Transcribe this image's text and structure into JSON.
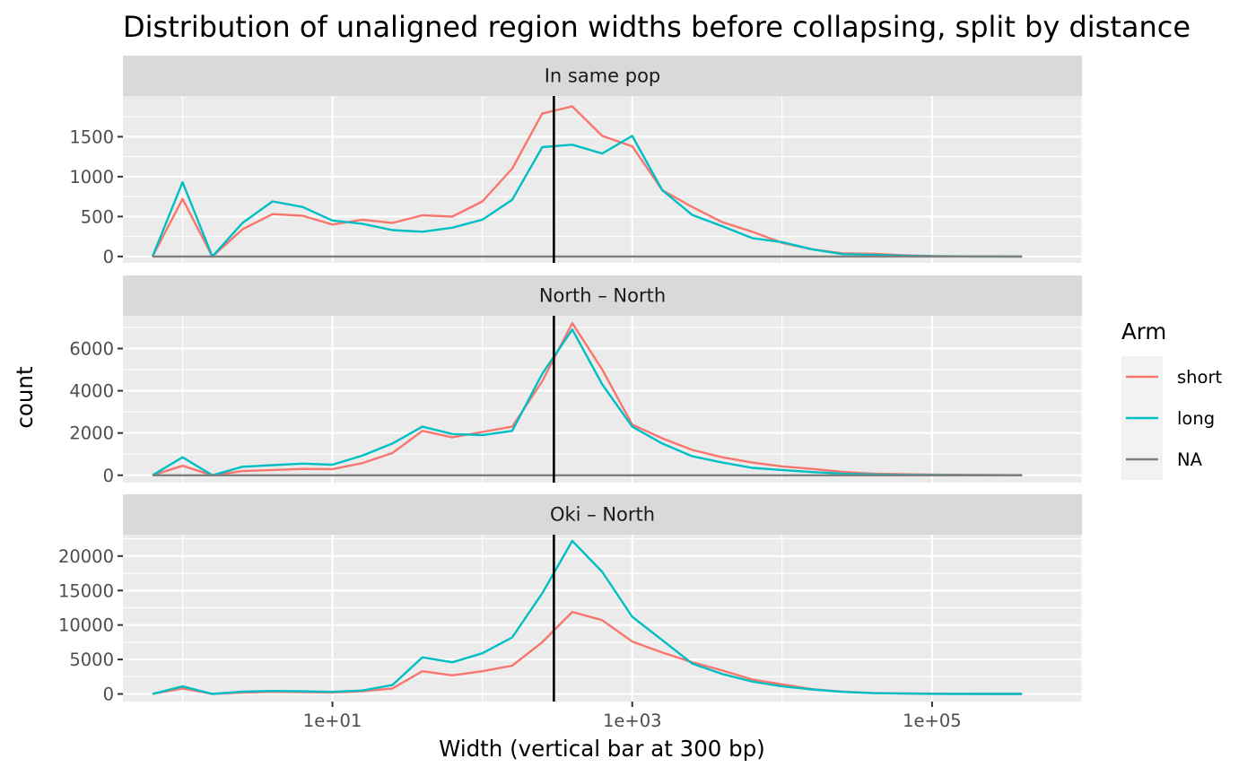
{
  "chart_data": {
    "type": "line",
    "title": "Distribution of unaligned region widths before collapsing, split by distance",
    "xlabel": "Width (vertical bar at 300 bp)",
    "ylabel": "count",
    "x_scale": "log10",
    "xlim": [
      0.4,
      1000000
    ],
    "x_ticks": [
      10,
      1000,
      100000
    ],
    "x_tick_labels": [
      "1e+01",
      "1e+03",
      "1e+05"
    ],
    "vline": 300,
    "grid": true,
    "legend": {
      "title": "Arm",
      "position": "right",
      "entries": [
        {
          "name": "short",
          "color": "#F8766D"
        },
        {
          "name": "long",
          "color": "#00BFC4"
        },
        {
          "name": "NA",
          "color": "#7F7F7F"
        }
      ]
    },
    "x": [
      0.63,
      1,
      1.58,
      2.51,
      3.98,
      6.31,
      10,
      15.8,
      25.1,
      39.8,
      63.1,
      100,
      158,
      251,
      398,
      631,
      1000,
      1585,
      2512,
      3981,
      6310,
      10000,
      15850,
      25120,
      39810,
      63100,
      100000,
      158500,
      251200,
      398100
    ],
    "panels": [
      {
        "label": "In same pop",
        "ylim": [
          -80,
          2010
        ],
        "y_ticks": [
          0,
          500,
          1000,
          1500
        ],
        "series": [
          {
            "name": "short",
            "values": [
              0,
              720,
              0,
              340,
              530,
              510,
              400,
              460,
              420,
              515,
              500,
              690,
              1100,
              1790,
              1880,
              1510,
              1380,
              830,
              620,
              430,
              310,
              170,
              90,
              40,
              35,
              15,
              5,
              2,
              1,
              0
            ]
          },
          {
            "name": "long",
            "values": [
              0,
              930,
              0,
              420,
              690,
              620,
              450,
              410,
              330,
              310,
              360,
              460,
              710,
              1370,
              1400,
              1290,
              1510,
              830,
              520,
              380,
              230,
              180,
              90,
              30,
              20,
              10,
              3,
              1,
              0,
              0
            ]
          },
          {
            "name": "NA",
            "values": [
              0,
              0,
              0,
              0,
              0,
              0,
              0,
              0,
              0,
              0,
              0,
              0,
              0,
              0,
              0,
              0,
              0,
              0,
              0,
              0,
              0,
              0,
              0,
              0,
              0,
              0,
              0,
              0,
              0,
              0
            ]
          }
        ]
      },
      {
        "label": "North – North",
        "ylim": [
          -350,
          7550
        ],
        "y_ticks": [
          0,
          2000,
          4000,
          6000
        ],
        "series": [
          {
            "name": "short",
            "values": [
              0,
              450,
              0,
              200,
              250,
              300,
              290,
              570,
              1050,
              2100,
              1800,
              2050,
              2300,
              4450,
              7200,
              5000,
              2400,
              1750,
              1200,
              850,
              600,
              420,
              300,
              160,
              80,
              50,
              30,
              20,
              10,
              5
            ]
          },
          {
            "name": "long",
            "values": [
              0,
              850,
              0,
              400,
              480,
              550,
              500,
              930,
              1500,
              2300,
              1950,
              1900,
              2100,
              4800,
              6900,
              4300,
              2300,
              1500,
              900,
              600,
              350,
              250,
              150,
              80,
              40,
              20,
              10,
              5,
              2,
              1
            ]
          },
          {
            "name": "NA",
            "values": [
              0,
              0,
              0,
              0,
              0,
              0,
              0,
              0,
              0,
              0,
              0,
              0,
              0,
              0,
              0,
              0,
              0,
              0,
              0,
              0,
              0,
              0,
              0,
              0,
              0,
              0,
              0,
              0,
              0,
              0
            ]
          }
        ]
      },
      {
        "label": "Oki – North",
        "ylim": [
          -1100,
          23100
        ],
        "y_ticks": [
          0,
          5000,
          10000,
          15000,
          20000
        ],
        "series": [
          {
            "name": "short",
            "values": [
              0,
              800,
              0,
              200,
              300,
              250,
              220,
              380,
              800,
              3300,
              2700,
              3300,
              4100,
              7500,
              11900,
              10700,
              7600,
              6000,
              4600,
              3400,
              2100,
              1400,
              700,
              350,
              150,
              80,
              40,
              20,
              10,
              5
            ]
          },
          {
            "name": "long",
            "values": [
              0,
              1100,
              0,
              350,
              430,
              380,
              300,
              500,
              1300,
              5300,
              4600,
              5900,
              8200,
              14600,
              22200,
              17700,
              11200,
              7800,
              4400,
              2900,
              1800,
              1100,
              650,
              300,
              120,
              60,
              25,
              10,
              5,
              2
            ]
          }
        ]
      }
    ]
  }
}
